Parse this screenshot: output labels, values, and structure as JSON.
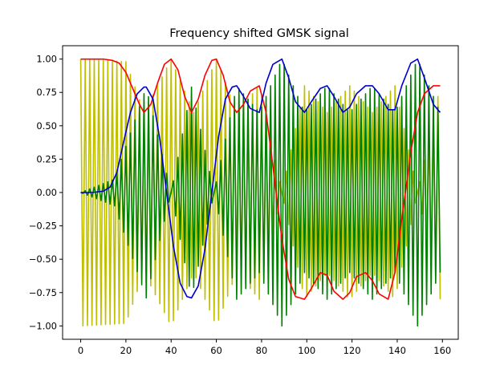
{
  "chart_data": {
    "type": "line",
    "title": "Frequency shifted GMSK signal",
    "xlabel": "",
    "ylabel": "",
    "xlim": [
      -8,
      167
    ],
    "ylim": [
      -1.1,
      1.1
    ],
    "xticks": [
      0,
      20,
      40,
      60,
      80,
      100,
      120,
      140,
      160
    ],
    "yticks": [
      -1.0,
      -0.75,
      -0.5,
      -0.25,
      0.0,
      0.25,
      0.5,
      0.75,
      1.0
    ],
    "xtick_labels": [
      "0",
      "20",
      "40",
      "60",
      "80",
      "100",
      "120",
      "140",
      "160"
    ],
    "ytick_labels": [
      "−1.00",
      "−0.75",
      "−0.50",
      "−0.25",
      "0.00",
      "0.25",
      "0.50",
      "0.75",
      "1.00"
    ],
    "grid": false,
    "legend": "none",
    "series": [
      {
        "color": "#bfbf00",
        "style": "oscillating",
        "x_step": 1,
        "x": [
          0,
          159
        ],
        "note_fn": "carrier_i",
        "envelope_points": [
          [
            0,
            1.0
          ],
          [
            20,
            0.98
          ],
          [
            28,
            0.6
          ],
          [
            40,
            1.0
          ],
          [
            50,
            0.6
          ],
          [
            60,
            1.0
          ],
          [
            69,
            0.6
          ],
          [
            79,
            0.8
          ],
          [
            89,
            0.0
          ],
          [
            99,
            -0.8
          ],
          [
            109,
            -0.6
          ],
          [
            119,
            -0.8
          ],
          [
            129,
            -0.6
          ],
          [
            139,
            -0.8
          ],
          [
            149,
            0.0
          ],
          [
            159,
            0.8
          ]
        ]
      },
      {
        "color": "#008000",
        "style": "oscillating",
        "x_step": 1,
        "x": [
          0,
          159
        ],
        "envelope_points": [
          [
            0,
            0.0
          ],
          [
            15,
            0.1
          ],
          [
            29,
            0.79
          ],
          [
            40,
            0.0
          ],
          [
            49,
            -0.79
          ],
          [
            59,
            0.0
          ],
          [
            69,
            0.8
          ],
          [
            79,
            0.6
          ],
          [
            89,
            1.0
          ],
          [
            99,
            0.6
          ],
          [
            109,
            0.8
          ],
          [
            119,
            0.6
          ],
          [
            129,
            0.8
          ],
          [
            139,
            0.6
          ],
          [
            149,
            1.0
          ],
          [
            159,
            0.6
          ]
        ]
      },
      {
        "color": "#ff0000",
        "style": "line",
        "x": [
          0,
          5,
          10,
          14,
          17,
          20,
          23,
          26,
          28,
          31,
          34,
          37,
          40,
          43,
          46,
          49,
          52,
          55,
          58,
          60,
          63,
          66,
          69,
          72,
          75,
          79,
          82,
          85,
          89,
          92,
          95,
          99,
          102,
          106,
          109,
          112,
          116,
          119,
          122,
          126,
          129,
          132,
          136,
          139,
          142,
          146,
          149,
          152,
          156,
          159
        ],
        "y": [
          1.0,
          1.0,
          1.0,
          0.99,
          0.97,
          0.9,
          0.78,
          0.66,
          0.6,
          0.66,
          0.82,
          0.96,
          1.0,
          0.92,
          0.72,
          0.6,
          0.7,
          0.88,
          0.99,
          1.0,
          0.88,
          0.68,
          0.6,
          0.66,
          0.76,
          0.8,
          0.6,
          0.2,
          -0.35,
          -0.65,
          -0.78,
          -0.8,
          -0.72,
          -0.6,
          -0.62,
          -0.74,
          -0.8,
          -0.75,
          -0.63,
          -0.6,
          -0.66,
          -0.76,
          -0.8,
          -0.6,
          -0.2,
          0.3,
          0.6,
          0.74,
          0.8,
          0.8
        ]
      },
      {
        "color": "#0000cd",
        "style": "line",
        "x": [
          0,
          5,
          10,
          13,
          16,
          19,
          22,
          25,
          28,
          29,
          32,
          35,
          38,
          41,
          44,
          47,
          49,
          52,
          55,
          58,
          61,
          64,
          67,
          69,
          72,
          75,
          79,
          82,
          85,
          89,
          92,
          95,
          99,
          102,
          106,
          109,
          112,
          116,
          119,
          122,
          126,
          129,
          132,
          136,
          139,
          142,
          146,
          149,
          152,
          156,
          159
        ],
        "y": [
          0.0,
          0.0,
          0.01,
          0.04,
          0.15,
          0.38,
          0.6,
          0.74,
          0.79,
          0.79,
          0.7,
          0.4,
          0.0,
          -0.4,
          -0.68,
          -0.78,
          -0.79,
          -0.7,
          -0.42,
          0.0,
          0.42,
          0.7,
          0.79,
          0.8,
          0.72,
          0.63,
          0.6,
          0.82,
          0.96,
          1.0,
          0.86,
          0.68,
          0.6,
          0.68,
          0.78,
          0.8,
          0.72,
          0.6,
          0.64,
          0.74,
          0.8,
          0.8,
          0.74,
          0.62,
          0.62,
          0.8,
          0.97,
          1.0,
          0.86,
          0.66,
          0.6
        ]
      }
    ]
  }
}
